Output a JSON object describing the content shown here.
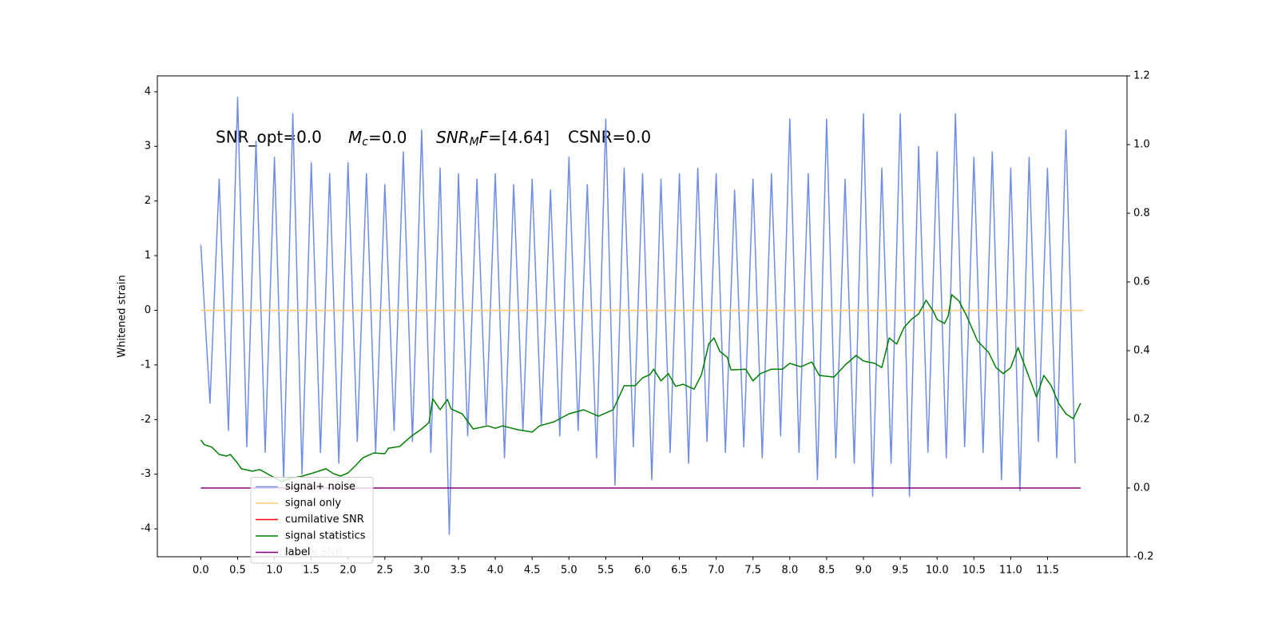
{
  "chart_data": {
    "type": "line",
    "annotations": [
      "SNR_opt=0.0",
      "M",
      "c",
      "=0.0",
      "SNR",
      "M",
      "F",
      "=[4.64]",
      "CSNR=0.0",
      "cumilative SNR"
    ],
    "ylabel": "Whitened strain",
    "xlim": [
      -0.59,
      12.58
    ],
    "ylim": [
      -4.51,
      4.29
    ],
    "y2lim": [
      -0.2,
      1.2
    ],
    "xticks": [
      {
        "value": 0,
        "label": "0.0"
      },
      0.5,
      {
        "value": 1,
        "label": "1.0"
      },
      1.5,
      {
        "value": 2,
        "label": "2.0"
      },
      2.5,
      {
        "value": 3,
        "label": "3.0"
      },
      3.5,
      {
        "value": 4,
        "label": "4.0"
      },
      4.5,
      {
        "value": 5,
        "label": "5.0"
      },
      5.5,
      {
        "value": 6,
        "label": "6.0"
      },
      6.5,
      {
        "value": 7,
        "label": "7.0"
      },
      7.5,
      {
        "value": 8,
        "label": "8.0"
      },
      8.5,
      {
        "value": 9,
        "label": "9.0"
      },
      9.5,
      {
        "value": 10,
        "label": "10.0"
      },
      10.5,
      {
        "value": 11,
        "label": "11.0"
      },
      11.5
    ],
    "yticks": [
      -4,
      -3,
      -2,
      -1,
      0,
      1,
      2,
      3,
      4
    ],
    "y2ticks": [
      -0.2,
      {
        "value": 0,
        "label": "0.0"
      },
      0.2,
      0.4,
      0.6,
      0.8,
      {
        "value": 1,
        "label": "1.0"
      },
      1.2
    ],
    "legend": "lower left",
    "series": [
      {
        "name": "signal+ noise",
        "color": "#6f8de6",
        "axis": "y",
        "x": [
          0,
          0.125,
          0.25,
          0.375,
          0.5,
          0.625,
          0.75,
          0.875,
          1,
          1.125,
          1.25,
          1.375,
          1.5,
          1.625,
          1.75,
          1.875,
          2,
          2.125,
          2.25,
          2.375,
          2.5,
          2.625,
          2.75,
          2.875,
          3,
          3.125,
          3.25,
          3.375,
          3.5,
          3.625,
          3.75,
          3.875,
          4,
          4.125,
          4.25,
          4.375,
          4.5,
          4.625,
          4.75,
          4.875,
          5,
          5.125,
          5.25,
          5.375,
          5.5,
          5.625,
          5.75,
          5.875,
          6,
          6.125,
          6.25,
          6.375,
          6.5,
          6.625,
          6.75,
          6.875,
          7,
          7.125,
          7.25,
          7.375,
          7.5,
          7.625,
          7.75,
          7.875,
          8,
          8.125,
          8.25,
          8.375,
          8.5,
          8.625,
          8.75,
          8.875,
          9,
          9.125,
          9.25,
          9.375,
          9.5,
          9.625,
          9.75,
          9.875,
          10,
          10.125,
          10.25,
          10.375,
          10.5,
          10.625,
          10.75,
          10.875,
          11,
          11.125,
          11.25,
          11.375,
          11.5,
          11.625,
          11.75,
          11.875
        ],
        "values": [
          1.2,
          -1.7,
          2.4,
          -2.2,
          3.9,
          -2.5,
          3.1,
          -2.6,
          2.8,
          -3.1,
          3.6,
          -3.0,
          2.7,
          -2.6,
          2.5,
          -2.8,
          2.7,
          -2.4,
          2.5,
          -2.6,
          2.3,
          -2.2,
          2.9,
          -2.4,
          3.3,
          -2.6,
          2.6,
          -4.1,
          2.5,
          -2.3,
          2.4,
          -2.1,
          2.5,
          -2.7,
          2.3,
          -2.2,
          2.4,
          -2.1,
          2.2,
          -2.3,
          2.8,
          -2.2,
          2.3,
          -2.7,
          3.5,
          -3.2,
          2.6,
          -2.5,
          2.5,
          -3.1,
          2.4,
          -2.6,
          2.5,
          -2.8,
          2.6,
          -2.4,
          2.5,
          -2.6,
          2.2,
          -2.5,
          2.4,
          -2.7,
          2.5,
          -2.3,
          3.5,
          -2.6,
          2.5,
          -3.1,
          3.5,
          -2.7,
          2.4,
          -2.8,
          3.6,
          -3.4,
          2.6,
          -2.8,
          3.6,
          -3.4,
          3.0,
          -2.6,
          2.9,
          -2.7,
          3.6,
          -2.5,
          2.8,
          -2.6,
          2.9,
          -3.1,
          2.6,
          -3.3,
          2.8,
          -2.4,
          2.6,
          -2.7,
          3.3,
          -2.8
        ]
      },
      {
        "name": "signal only",
        "color": "#ffc870",
        "axis": "y",
        "x": [
          0,
          11.99
        ],
        "values": [
          0,
          0
        ]
      },
      {
        "name": "cumilative SNR",
        "color": "#ff0000",
        "axis": "y2",
        "x": [],
        "values": []
      },
      {
        "name": "signal statistics",
        "color": "#008000",
        "axis": "y2",
        "x": [
          0,
          0.05,
          0.15,
          0.25,
          0.35,
          0.4,
          0.5,
          0.55,
          0.7,
          0.8,
          0.9,
          1.0,
          1.1,
          1.2,
          1.35,
          1.5,
          1.7,
          1.8,
          1.9,
          2.0,
          2.1,
          2.2,
          2.35,
          2.5,
          2.55,
          2.7,
          2.85,
          3.0,
          3.1,
          3.15,
          3.25,
          3.35,
          3.4,
          3.55,
          3.7,
          3.9,
          4.0,
          4.1,
          4.3,
          4.5,
          4.6,
          4.8,
          5.0,
          5.2,
          5.4,
          5.6,
          5.75,
          5.9,
          6.0,
          6.1,
          6.15,
          6.25,
          6.35,
          6.45,
          6.55,
          6.7,
          6.8,
          6.9,
          6.97,
          7.05,
          7.15,
          7.2,
          7.4,
          7.5,
          7.6,
          7.75,
          7.9,
          8.0,
          8.15,
          8.3,
          8.4,
          8.6,
          8.75,
          8.9,
          9.0,
          9.15,
          9.25,
          9.35,
          9.45,
          9.55,
          9.65,
          9.75,
          9.85,
          9.95,
          10.0,
          10.1,
          10.15,
          10.2,
          10.3,
          10.4,
          10.55,
          10.7,
          10.8,
          10.9,
          11.0,
          11.1,
          11.2,
          11.35,
          11.45,
          11.55,
          11.65,
          11.75,
          11.85,
          11.95
        ],
        "values": [
          0.14,
          0.126,
          0.119,
          0.098,
          0.093,
          0.098,
          0.072,
          0.056,
          0.049,
          0.054,
          0.042,
          0.03,
          0.019,
          0.028,
          0.033,
          0.042,
          0.056,
          0.042,
          0.035,
          0.044,
          0.065,
          0.088,
          0.102,
          0.1,
          0.116,
          0.121,
          0.149,
          0.172,
          0.191,
          0.26,
          0.228,
          0.258,
          0.23,
          0.216,
          0.172,
          0.181,
          0.174,
          0.181,
          0.17,
          0.163,
          0.181,
          0.193,
          0.216,
          0.228,
          0.209,
          0.228,
          0.298,
          0.298,
          0.321,
          0.33,
          0.346,
          0.312,
          0.333,
          0.296,
          0.302,
          0.288,
          0.33,
          0.42,
          0.437,
          0.398,
          0.381,
          0.344,
          0.346,
          0.312,
          0.333,
          0.346,
          0.346,
          0.363,
          0.353,
          0.367,
          0.328,
          0.323,
          0.358,
          0.386,
          0.37,
          0.363,
          0.351,
          0.437,
          0.419,
          0.467,
          0.491,
          0.507,
          0.547,
          0.514,
          0.491,
          0.479,
          0.5,
          0.563,
          0.544,
          0.502,
          0.428,
          0.395,
          0.351,
          0.333,
          0.351,
          0.409,
          0.351,
          0.265,
          0.328,
          0.298,
          0.247,
          0.216,
          0.202,
          0.247
        ]
      },
      {
        "name": "label",
        "color": "#800080",
        "axis": "y2",
        "x": [
          0,
          11.95
        ],
        "values": [
          0,
          0
        ]
      }
    ]
  }
}
